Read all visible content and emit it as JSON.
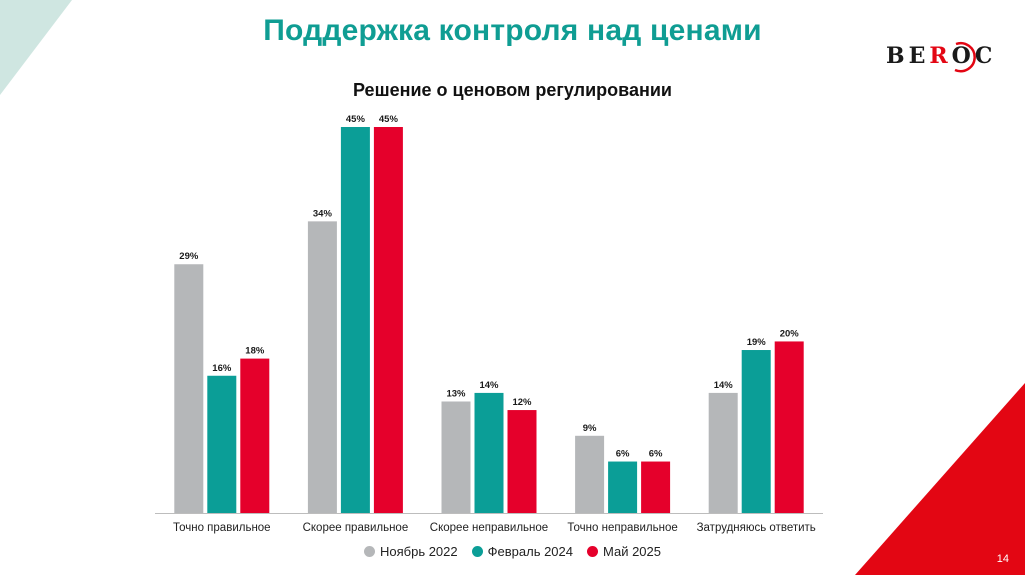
{
  "slide": {
    "title": "Поддержка контроля над ценами",
    "page_number": "14",
    "logo": {
      "prefix": "BE",
      "accent": "R",
      "suffix": "OC"
    }
  },
  "colors": {
    "title": "#0f9d93",
    "nov2022": "#b5b7b9",
    "feb2024": "#0b9e97",
    "may2025": "#e5002b",
    "corner_red": "#e30613",
    "corner_teal": "#cfe6e1"
  },
  "chart_data": {
    "type": "bar",
    "title": "Решение о ценовом регулировании",
    "categories": [
      "Точно правильное",
      "Скорее правильное",
      "Скорее неправильное",
      "Точно неправильное",
      "Затрудняюсь ответить"
    ],
    "series": [
      {
        "name": "Ноябрь 2022",
        "values": [
          29,
          34,
          13,
          9,
          14
        ],
        "labels": [
          "29%",
          "34%",
          "13%",
          "9%",
          "14%"
        ]
      },
      {
        "name": "Февраль 2024",
        "values": [
          16,
          45,
          14,
          6,
          19
        ],
        "labels": [
          "16%",
          "45%",
          "14%",
          "6%",
          "19%"
        ]
      },
      {
        "name": "Май 2025",
        "values": [
          18,
          45,
          12,
          6,
          20
        ],
        "labels": [
          "18%",
          "45%",
          "12%",
          "6%",
          "20%"
        ]
      }
    ],
    "ylim": [
      0,
      45
    ],
    "grid": false,
    "legend": "bottom"
  }
}
